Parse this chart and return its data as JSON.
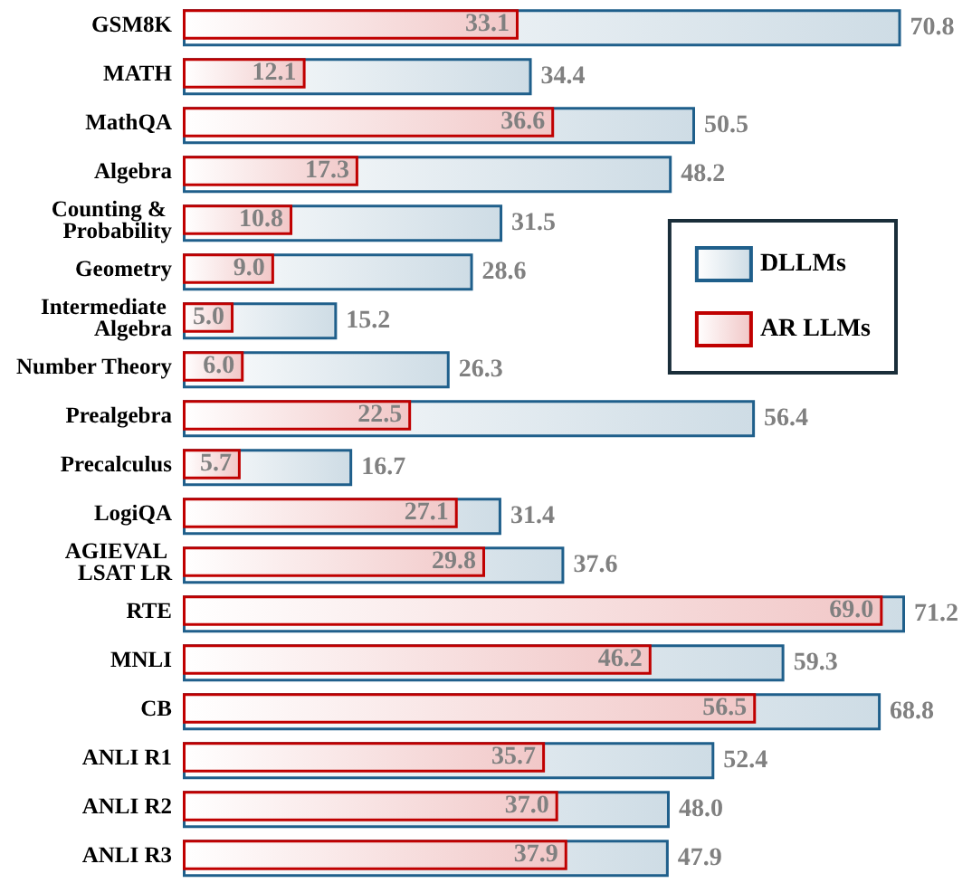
{
  "chart_data": {
    "type": "bar",
    "orientation": "horizontal",
    "legend": "right",
    "categories": [
      "GSM8K",
      "MATH",
      "MathQA",
      "Algebra",
      "Counting & Probability",
      "Geometry",
      "Intermediate Algebra",
      "Number Theory",
      "Prealgebra",
      "Precalculus",
      "LogiQA",
      "AGIEVAL LSAT LR",
      "RTE",
      "MNLI",
      "CB",
      "ANLI R1",
      "ANLI R2",
      "ANLI R3"
    ],
    "series": [
      {
        "name": "DLLMs",
        "color": "#1f5f8b",
        "values": [
          70.8,
          34.4,
          50.5,
          48.2,
          31.5,
          28.6,
          15.2,
          26.3,
          56.4,
          16.7,
          31.4,
          37.6,
          71.2,
          59.3,
          68.8,
          52.4,
          48.0,
          47.9
        ],
        "value_labels": [
          "70.8",
          "34.4",
          "50.5",
          "48.2",
          "31.5",
          "28.6",
          "15.2",
          "26.3",
          "56.4",
          "16.7",
          "31.4",
          "37.6",
          "71.2",
          "59.3",
          "68.8",
          "52.4",
          "48.0",
          "47.9"
        ]
      },
      {
        "name": "AR LLMs",
        "color": "#c00000",
        "values": [
          33.1,
          12.1,
          36.6,
          17.3,
          10.8,
          9.0,
          5.0,
          6.0,
          22.5,
          5.7,
          27.1,
          29.8,
          69.0,
          46.2,
          56.5,
          35.7,
          37.0,
          37.9
        ],
        "value_labels": [
          "33.1",
          "12.1",
          "36.6",
          "17.3",
          "10.8",
          "9.0",
          "5.0",
          "6.0",
          "22.5",
          "5.7",
          "27.1",
          "29.8",
          "69.0",
          "46.2",
          "56.5",
          "35.7",
          "37.0",
          "37.9"
        ]
      }
    ]
  }
}
